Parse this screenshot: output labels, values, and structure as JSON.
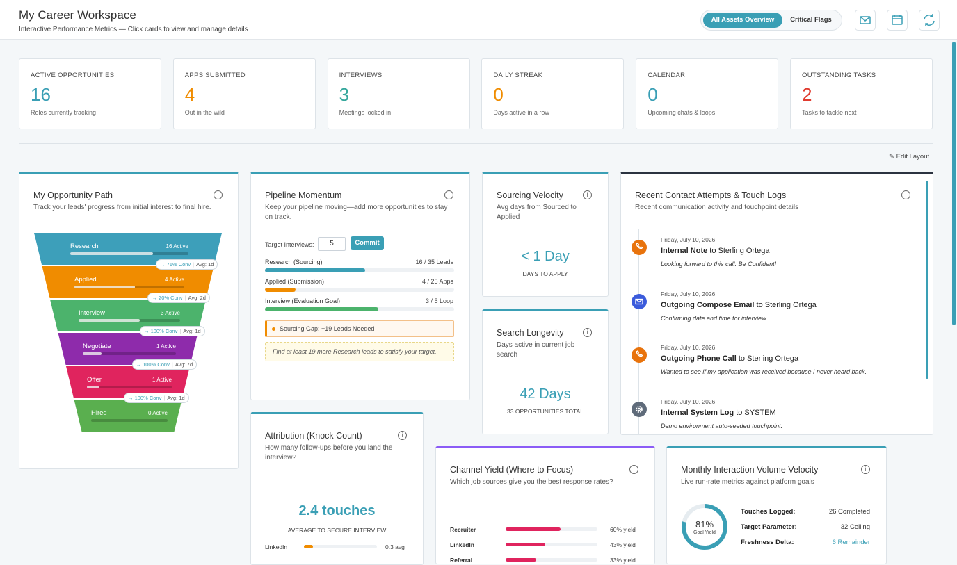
{
  "header": {
    "title": "My Career Workspace",
    "subtitle": "Interactive Performance Metrics — Click cards to view and manage details",
    "tabs": [
      "All Assets Overview",
      "Critical Flags"
    ]
  },
  "stats": [
    {
      "label": "ACTIVE OPPORTUNITIES",
      "value": "16",
      "note": "Roles currently tracking",
      "color": "#3a9fb5"
    },
    {
      "label": "APPS SUBMITTED",
      "value": "4",
      "note": "Out in the wild",
      "color": "#f08c00"
    },
    {
      "label": "INTERVIEWS",
      "value": "3",
      "note": "Meetings locked in",
      "color": "#35a79c"
    },
    {
      "label": "DAILY STREAK",
      "value": "0",
      "note": "Days active in a row",
      "color": "#f08c00"
    },
    {
      "label": "CALENDAR",
      "value": "0",
      "note": "Upcoming chats & loops",
      "color": "#3a9fb5"
    },
    {
      "label": "OUTSTANDING TASKS",
      "value": "2",
      "note": "Tasks to tackle next",
      "color": "#e03b2f"
    }
  ],
  "edit_layout": "Edit Layout",
  "funnel": {
    "title": "My Opportunity Path",
    "subtitle": "Track your leads' progress from initial interest to final hire.",
    "stages": [
      {
        "name": "Research",
        "active": "16 Active",
        "conv": "→ 71% Conv",
        "avg": "Avg: 1d",
        "color": "#3d9fba"
      },
      {
        "name": "Applied",
        "active": "4 Active",
        "conv": "→ 20% Conv",
        "avg": "Avg: 2d",
        "color": "#f08c00"
      },
      {
        "name": "Interview",
        "active": "3 Active",
        "conv": "→ 100% Conv",
        "avg": "Avg: 1d",
        "color": "#4cb36c"
      },
      {
        "name": "Negotiate",
        "active": "1 Active",
        "conv": "→ 100% Conv",
        "avg": "Avg: 7d",
        "color": "#8e2bab"
      },
      {
        "name": "Offer",
        "active": "1 Active",
        "conv": "→ 100% Conv",
        "avg": "Avg: 1d",
        "color": "#e0245e"
      },
      {
        "name": "Hired",
        "active": "0 Active",
        "color": "#5aaf4f"
      }
    ]
  },
  "pipeline": {
    "title": "Pipeline Momentum",
    "subtitle": "Keep your pipeline moving—add more opportunities to stay on track.",
    "target_label": "Target Interviews:",
    "target_value": "5",
    "button": "Commit",
    "rows": [
      {
        "name": "Research (Sourcing)",
        "count": "16 / 35 Leads",
        "color": "#3a9fb5"
      },
      {
        "name": "Applied (Submission)",
        "count": "4 / 25 Apps",
        "color": "#f08c00"
      },
      {
        "name": "Interview (Evaluation Goal)",
        "count": "3 / 5 Loop",
        "color": "#4cb36c"
      }
    ],
    "alert": "Sourcing Gap: +19 Leads Needed",
    "hint": "Find at least 19 more Research leads to satisfy your target."
  },
  "velocity": {
    "title": "Sourcing Velocity",
    "subtitle": "Avg days from Sourced to Applied",
    "value": "< 1 Day",
    "caption": "DAYS TO APPLY"
  },
  "longevity": {
    "title": "Search Longevity",
    "subtitle": "Days active in current job search",
    "value": "42 Days",
    "caption": "33 OPPORTUNITIES TOTAL"
  },
  "contacts": {
    "title": "Recent Contact Attempts & Touch Logs",
    "subtitle": "Recent communication activity and touchpoint details",
    "items": [
      {
        "date": "Friday, July 10, 2026",
        "type": "Internal Note",
        "target": "to Sterling Ortega",
        "note": "Looking forward to this call. Be Confident!",
        "icon": "phone"
      },
      {
        "date": "Friday, July 10, 2026",
        "type": "Outgoing Compose Email",
        "target": "to Sterling Ortega",
        "note": "Confirming date and time for interview.",
        "icon": "mail"
      },
      {
        "date": "Friday, July 10, 2026",
        "type": "Outgoing Phone Call",
        "target": "to Sterling Ortega",
        "note": "Wanted to see if my application was received because I never heard back.",
        "icon": "phone"
      },
      {
        "date": "Friday, July 10, 2026",
        "type": "Internal System Log",
        "target": "to SYSTEM",
        "note": "Demo environment auto-seeded touchpoint.",
        "icon": "gear"
      }
    ]
  },
  "attribution": {
    "title": "Attribution (Knock Count)",
    "subtitle": "How many follow-ups before you land the interview?",
    "value": "2.4 touches",
    "caption": "AVERAGE TO SECURE INTERVIEW",
    "rows": [
      {
        "name": "LinkedIn",
        "value": "0.3 avg"
      }
    ]
  },
  "channel": {
    "title": "Channel Yield (Where to Focus)",
    "subtitle": "Which job sources give you the best response rates?",
    "rows": [
      {
        "name": "Recruiter",
        "value": "60% yield"
      },
      {
        "name": "LinkedIn",
        "value": "43% yield"
      },
      {
        "name": "Referral",
        "value": "33% yield"
      }
    ]
  },
  "monthly": {
    "title": "Monthly Interaction Volume Velocity",
    "subtitle": "Live run-rate metrics against platform goals",
    "ring": "81%",
    "ring_caption": "Goal Yield",
    "rows": [
      {
        "name": "Touches Logged:",
        "value": "26 Completed"
      },
      {
        "name": "Target Parameter:",
        "value": "32 Ceiling"
      },
      {
        "name": "Freshness Delta:",
        "value": "6 Remainder"
      }
    ]
  }
}
